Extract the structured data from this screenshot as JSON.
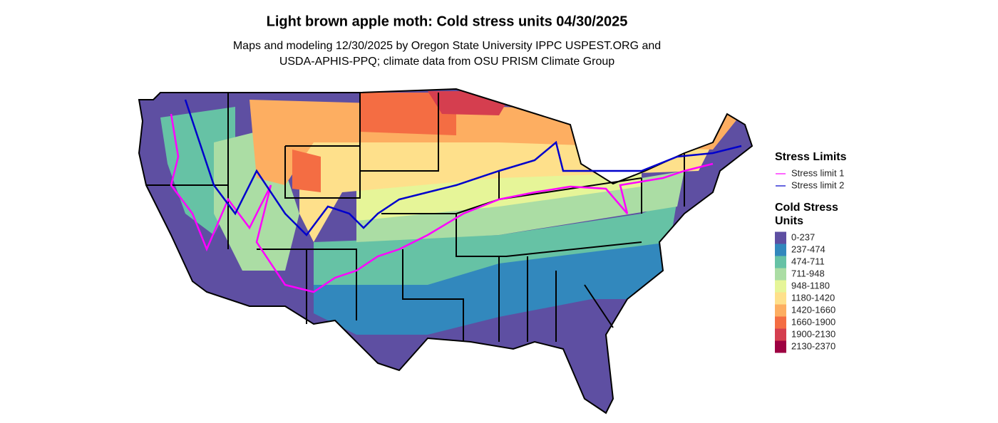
{
  "title": "Light brown apple moth: Cold stress units 04/30/2025",
  "subtitle": [
    "Maps and modeling 12/30/2025 by Oregon State University IPPC USPEST.ORG and",
    "USDA-APHIS-PPQ; climate data from OSU PRISM Climate Group"
  ],
  "legend": {
    "stress_limits": {
      "title": "Stress Limits",
      "items": [
        {
          "name": "Stress limit 1",
          "color": "#ff00ff"
        },
        {
          "name": "Stress limit 2",
          "color": "#0000cc"
        }
      ]
    },
    "cold_stress_units": {
      "title": [
        "Cold Stress",
        "Units"
      ],
      "items": [
        {
          "label": "0-237",
          "color": "#5e4fa2"
        },
        {
          "label": "237-474",
          "color": "#3288bd"
        },
        {
          "label": "474-711",
          "color": "#66c2a5"
        },
        {
          "label": "711-948",
          "color": "#abdda4"
        },
        {
          "label": "948-1180",
          "color": "#e6f598"
        },
        {
          "label": "1180-1420",
          "color": "#fee08b"
        },
        {
          "label": "1420-1660",
          "color": "#fdae61"
        },
        {
          "label": "1660-1900",
          "color": "#f46d43"
        },
        {
          "label": "1900-2130",
          "color": "#d53e4f"
        },
        {
          "label": "2130-2370",
          "color": "#9e0142"
        }
      ]
    }
  }
}
